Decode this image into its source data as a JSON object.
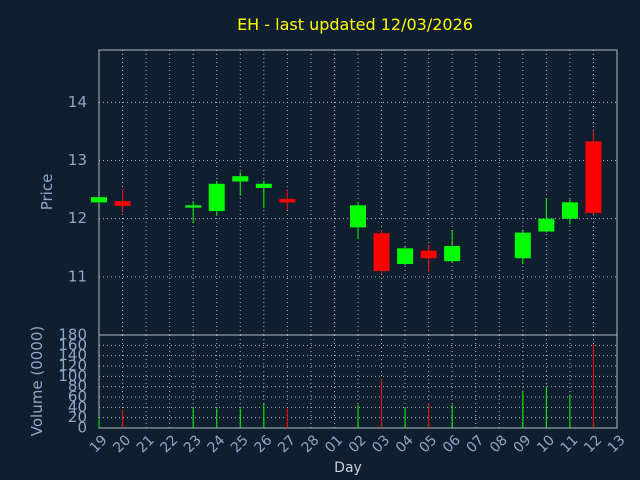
{
  "chart_data": {
    "type": "candlestick",
    "title": "EH - last updated 12/03/2026",
    "xlabel": "Day",
    "price_ylabel": "Price",
    "volume_ylabel": "Volume (0000)",
    "x_ticks": [
      "19",
      "20",
      "21",
      "22",
      "23",
      "24",
      "25",
      "26",
      "27",
      "28",
      "01",
      "02",
      "03",
      "04",
      "05",
      "06",
      "07",
      "08",
      "09",
      "10",
      "11",
      "12",
      "13"
    ],
    "price_ylim": [
      10.0,
      14.9
    ],
    "price_ticks": [
      "11",
      "12",
      "13",
      "14"
    ],
    "volume_ylim": [
      0,
      180
    ],
    "volume_ticks": [
      "0",
      "20",
      "40",
      "60",
      "80",
      "100",
      "120",
      "140",
      "160",
      "180"
    ],
    "grid": true,
    "colors": {
      "background": "#0f1f30",
      "title": "#ffff00",
      "axis_text": "#8fa8c8",
      "up": "#00ff00",
      "down": "#ff0000",
      "grid": "#b0b8c0"
    },
    "candles": [
      {
        "day": "19",
        "open": 12.28,
        "close": 12.37,
        "high": 12.38,
        "low": 12.26,
        "volume": 20
      },
      {
        "day": "20",
        "open": 12.3,
        "close": 12.22,
        "high": 12.5,
        "low": 12.1,
        "volume": 35
      },
      {
        "day": "23",
        "open": 12.19,
        "close": 12.23,
        "high": 12.3,
        "low": 11.93,
        "volume": 40
      },
      {
        "day": "24",
        "open": 12.13,
        "close": 12.6,
        "high": 12.65,
        "low": 12.05,
        "volume": 38
      },
      {
        "day": "25",
        "open": 12.64,
        "close": 12.73,
        "high": 12.8,
        "low": 12.4,
        "volume": 38
      },
      {
        "day": "26",
        "open": 12.53,
        "close": 12.6,
        "high": 12.65,
        "low": 12.18,
        "volume": 48
      },
      {
        "day": "27",
        "open": 12.34,
        "close": 12.28,
        "high": 12.5,
        "low": 12.15,
        "volume": 38
      },
      {
        "day": "02",
        "open": 11.85,
        "close": 12.23,
        "high": 12.28,
        "low": 11.65,
        "volume": 45
      },
      {
        "day": "03",
        "open": 11.75,
        "close": 11.1,
        "high": 11.8,
        "low": 11.05,
        "volume": 95
      },
      {
        "day": "04",
        "open": 11.22,
        "close": 11.49,
        "high": 11.52,
        "low": 11.2,
        "volume": 40
      },
      {
        "day": "05",
        "open": 11.45,
        "close": 11.32,
        "high": 11.55,
        "low": 11.08,
        "volume": 48
      },
      {
        "day": "06",
        "open": 11.27,
        "close": 11.53,
        "high": 11.8,
        "low": 11.25,
        "volume": 45
      },
      {
        "day": "09",
        "open": 11.32,
        "close": 11.76,
        "high": 11.8,
        "low": 11.22,
        "volume": 72
      },
      {
        "day": "10",
        "open": 11.78,
        "close": 12.0,
        "high": 12.35,
        "low": 11.76,
        "volume": 80
      },
      {
        "day": "11",
        "open": 12.0,
        "close": 12.28,
        "high": 12.33,
        "low": 11.9,
        "volume": 65
      },
      {
        "day": "12",
        "open": 13.33,
        "close": 12.1,
        "high": 13.5,
        "low": 12.08,
        "volume": 162
      }
    ]
  }
}
